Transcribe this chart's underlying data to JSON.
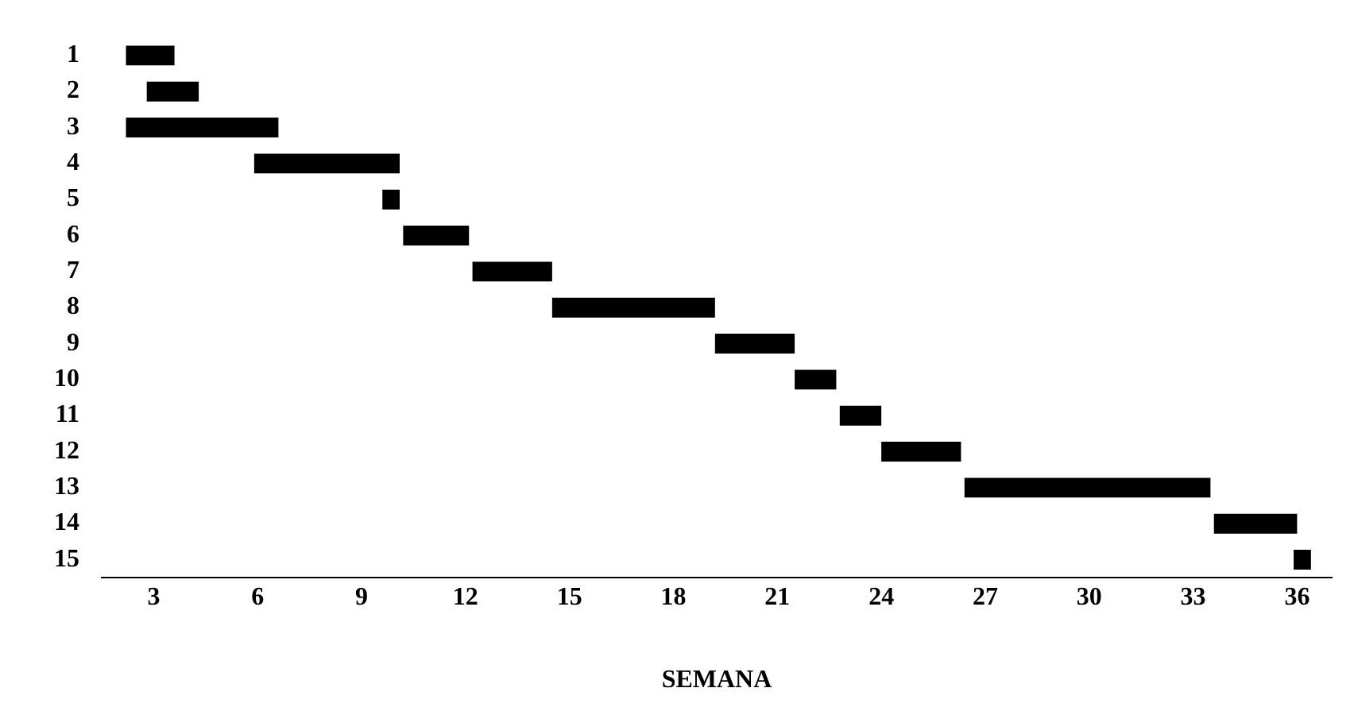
{
  "chart_data": {
    "type": "bar",
    "orientation": "horizontal",
    "xlabel": "SEMANA",
    "categories": [
      "1",
      "2",
      "3",
      "4",
      "5",
      "6",
      "7",
      "8",
      "9",
      "10",
      "11",
      "12",
      "13",
      "14",
      "15"
    ],
    "base": [
      2.2,
      2.8,
      2.2,
      5.9,
      9.6,
      10.2,
      12.2,
      14.5,
      19.2,
      21.5,
      22.8,
      24.0,
      26.4,
      33.6,
      35.9
    ],
    "values": [
      1.4,
      1.5,
      4.4,
      4.2,
      0.5,
      1.9,
      2.3,
      4.7,
      2.3,
      1.2,
      1.2,
      2.3,
      7.1,
      2.4,
      0.5
    ],
    "color": "#000000",
    "xlim": [
      1.5,
      37
    ],
    "xticks": [
      3,
      6,
      9,
      12,
      15,
      18,
      21,
      24,
      27,
      30,
      33,
      36
    ],
    "grid": false,
    "legend": false
  }
}
